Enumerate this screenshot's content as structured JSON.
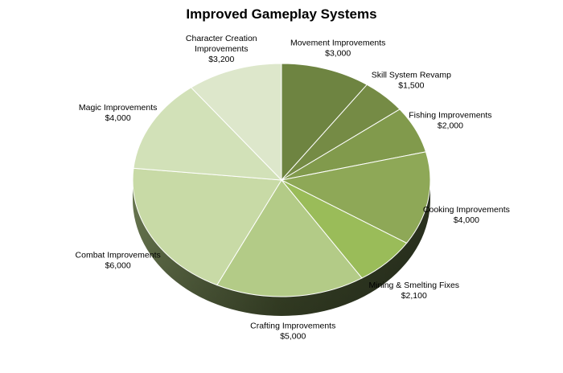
{
  "chart_data": {
    "type": "pie",
    "title": "Improved Gameplay Systems",
    "style": "3d",
    "currency": "$",
    "slices": [
      {
        "label": [
          "Movement Improvements"
        ],
        "value_text": "$3,000",
        "value": 3000,
        "color": "#6e8441"
      },
      {
        "label": [
          "Skill System  Revamp"
        ],
        "value_text": "$1,500",
        "value": 1500,
        "color": "#758b45"
      },
      {
        "label": [
          "Fishing Improvements"
        ],
        "value_text": "$2,000",
        "value": 2000,
        "color": "#819a4c"
      },
      {
        "label": [
          "Cooking Improvements"
        ],
        "value_text": "$4,000",
        "value": 4000,
        "color": "#8ea857"
      },
      {
        "label": [
          "Mining & Smelting Fixes"
        ],
        "value_text": "$2,100",
        "value": 2100,
        "color": "#9abc59"
      },
      {
        "label": [
          "Crafting Improvements"
        ],
        "value_text": "$5,000",
        "value": 5000,
        "color": "#b3cb87"
      },
      {
        "label": [
          "Combat Improvements"
        ],
        "value_text": "$6,000",
        "value": 6000,
        "color": "#c8daa6"
      },
      {
        "label": [
          "Magic Improvements"
        ],
        "value_text": "$4,000",
        "value": 4000,
        "color": "#d2e1b8"
      },
      {
        "label": [
          "Character Creation",
          "Improvements"
        ],
        "value_text": "$3,200",
        "value": 3200,
        "color": "#dde7cb"
      }
    ]
  }
}
